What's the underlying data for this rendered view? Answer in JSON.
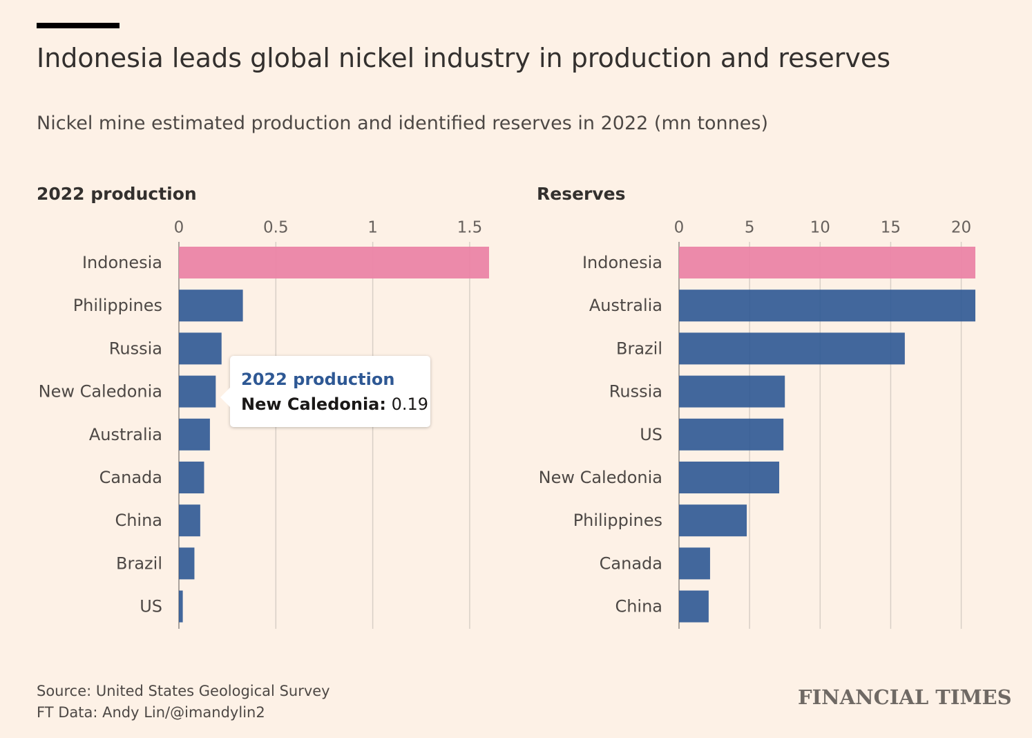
{
  "title": "Indonesia leads global nickel industry in production and reserves",
  "subtitle": "Nickel mine estimated production and identified reserves in 2022 (mn tonnes)",
  "colors": {
    "background": "#fdf1e6",
    "highlight": "#eb84a6",
    "bar": "#2e5894",
    "gridline": "#d8cfc6",
    "axis": "#a9a29c"
  },
  "chart_data": [
    {
      "type": "bar",
      "orientation": "horizontal",
      "title": "2022 production",
      "categories": [
        "Indonesia",
        "Philippines",
        "Russia",
        "New Caledonia",
        "Australia",
        "Canada",
        "China",
        "Brazil",
        "US"
      ],
      "values": [
        1.6,
        0.33,
        0.22,
        0.19,
        0.16,
        0.13,
        0.11,
        0.08,
        0.02
      ],
      "highlight": [
        "Indonesia"
      ],
      "xlim": [
        0,
        1.6
      ],
      "ticks": [
        0,
        0.5,
        1,
        1.5
      ],
      "tick_labels": [
        "0",
        "0.5",
        "1",
        "1.5"
      ],
      "grid": true
    },
    {
      "type": "bar",
      "orientation": "horizontal",
      "title": "Reserves",
      "categories": [
        "Indonesia",
        "Australia",
        "Brazil",
        "Russia",
        "US",
        "New Caledonia",
        "Philippines",
        "Canada",
        "China"
      ],
      "values": [
        21,
        21,
        16,
        7.5,
        7.4,
        7.1,
        4.8,
        2.2,
        2.1
      ],
      "highlight": [
        "Indonesia"
      ],
      "xlim": [
        0,
        21
      ],
      "ticks": [
        0,
        5,
        10,
        15,
        20
      ],
      "tick_labels": [
        "0",
        "5",
        "10",
        "15",
        "20"
      ],
      "grid": true
    }
  ],
  "tooltip": {
    "series": "2022 production",
    "category": "New Caledonia:",
    "value": "0.19"
  },
  "footer": {
    "source": "Source: United States Geological Survey",
    "credit": "FT Data: Andy Lin/@imandylin2",
    "brand": "FINANCIAL TIMES"
  }
}
